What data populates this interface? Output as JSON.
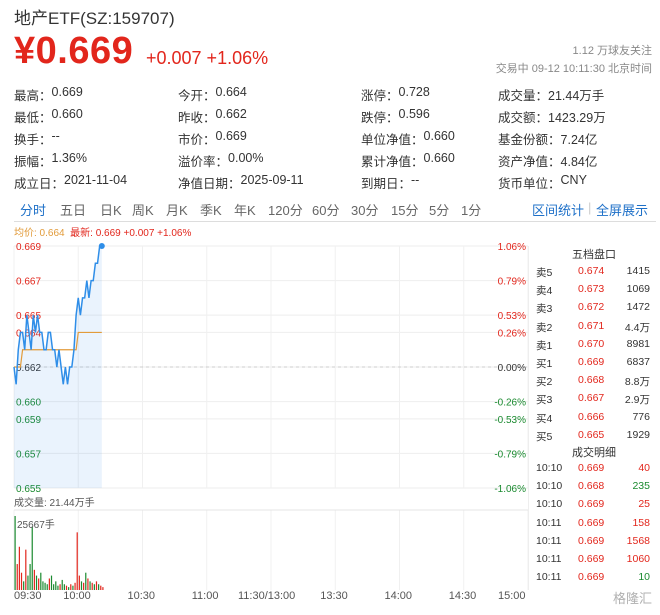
{
  "header": {
    "title": "地产ETF(SZ:159707)",
    "price": "¥0.669",
    "change": "+0.007  +1.06%",
    "followers": "1.12 万球友关注",
    "status": "交易中 09-12 10:11:30 北京时间"
  },
  "stats": [
    [
      {
        "label": "最高：",
        "value": "0.669",
        "color": "red"
      },
      {
        "label": "今开：",
        "value": "0.664",
        "color": "red"
      },
      {
        "label": "涨停：",
        "value": "0.728",
        "color": "red"
      },
      {
        "label": "成交量：",
        "value": "21.44万手",
        "color": ""
      }
    ],
    [
      {
        "label": "最低：",
        "value": "0.660",
        "color": "green"
      },
      {
        "label": "昨收：",
        "value": "0.662",
        "color": ""
      },
      {
        "label": "跌停：",
        "value": "0.596",
        "color": "green"
      },
      {
        "label": "成交额：",
        "value": "1423.29万",
        "color": ""
      }
    ],
    [
      {
        "label": "换手：",
        "value": "--",
        "color": ""
      },
      {
        "label": "市价：",
        "value": "0.669",
        "color": ""
      },
      {
        "label": "单位净值：",
        "value": "0.660",
        "color": ""
      },
      {
        "label": "基金份额：",
        "value": "7.24亿",
        "color": ""
      }
    ],
    [
      {
        "label": "振幅：",
        "value": "1.36%",
        "color": ""
      },
      {
        "label": "溢价率：",
        "value": "0.00%",
        "color": ""
      },
      {
        "label": "累计净值：",
        "value": "0.660",
        "color": ""
      },
      {
        "label": "资产净值：",
        "value": "4.84亿",
        "color": ""
      }
    ],
    [
      {
        "label": "成立日：",
        "value": "2021-11-04",
        "color": ""
      },
      {
        "label": "净值日期：",
        "value": "2025-09-11",
        "color": ""
      },
      {
        "label": "到期日：",
        "value": "--",
        "color": ""
      },
      {
        "label": "货币单位：",
        "value": "CNY",
        "color": ""
      }
    ]
  ],
  "tabs": [
    "分时",
    "五日",
    "日K",
    "周K",
    "月K",
    "季K",
    "年K",
    "120分",
    "60分",
    "30分",
    "15分",
    "5分",
    "1分"
  ],
  "active_tab": "分时",
  "tab_links": [
    "区间统计",
    "全屏展示"
  ],
  "legend": {
    "avg": "均价: 0.664",
    "last": "最新: 0.669  +0.007  +1.06%"
  },
  "volume_label": "成交量: 21.44万手",
  "volume_max_label": "25667手",
  "order_book_title": "五档盘口",
  "order_book": [
    {
      "label": "卖5",
      "price": "0.674",
      "vol": "1415",
      "color": "red"
    },
    {
      "label": "卖4",
      "price": "0.673",
      "vol": "1069",
      "color": "red"
    },
    {
      "label": "卖3",
      "price": "0.672",
      "vol": "1472",
      "color": "red"
    },
    {
      "label": "卖2",
      "price": "0.671",
      "vol": "4.4万",
      "color": "red"
    },
    {
      "label": "卖1",
      "price": "0.670",
      "vol": "8981",
      "color": "red"
    },
    {
      "label": "买1",
      "price": "0.669",
      "vol": "6837",
      "color": "red"
    },
    {
      "label": "买2",
      "price": "0.668",
      "vol": "8.8万",
      "color": "red"
    },
    {
      "label": "买3",
      "price": "0.667",
      "vol": "2.9万",
      "color": "red"
    },
    {
      "label": "买4",
      "price": "0.666",
      "vol": "776",
      "color": "red"
    },
    {
      "label": "买5",
      "price": "0.665",
      "vol": "1929",
      "color": "red"
    }
  ],
  "trades_title": "成交明细",
  "trades": [
    {
      "time": "10:10",
      "price": "0.669",
      "vol": "40",
      "vol_color": "red"
    },
    {
      "time": "10:10",
      "price": "0.668",
      "vol": "235",
      "vol_color": "green"
    },
    {
      "time": "10:10",
      "price": "0.669",
      "vol": "25",
      "vol_color": "red"
    },
    {
      "time": "10:11",
      "price": "0.669",
      "vol": "158",
      "vol_color": "red"
    },
    {
      "time": "10:11",
      "price": "0.669",
      "vol": "1568",
      "vol_color": "red"
    },
    {
      "time": "10:11",
      "price": "0.669",
      "vol": "1060",
      "vol_color": "red"
    },
    {
      "time": "10:11",
      "price": "0.669",
      "vol": "10",
      "vol_color": "green"
    }
  ],
  "time_axis": [
    "09:30",
    "10:00",
    "10:30",
    "11:00",
    "11:30/13:00",
    "13:30",
    "14:00",
    "14:30",
    "15:00"
  ],
  "watermark": "格隆汇",
  "colors": {
    "up": "#e2261c",
    "down": "#1a8a2f",
    "line": "#2f8ee8",
    "avg": "#e29b3a",
    "accent": "#1e70c8"
  },
  "chart_data": {
    "type": "line",
    "y_ticks_left": [
      "0.669",
      "0.667",
      "0.665",
      "0.664",
      "0.662",
      "0.660",
      "0.659",
      "0.657",
      "0.655"
    ],
    "y_ticks_right": [
      "1.06%",
      "0.79%",
      "0.53%",
      "0.26%",
      "0.00%",
      "-0.26%",
      "-0.53%",
      "-0.79%",
      "-1.06%"
    ],
    "ylim": [
      0.655,
      0.669
    ],
    "prev_close": 0.662,
    "x_minutes_elapsed": [
      0,
      1,
      2,
      3,
      4,
      5,
      6,
      7,
      8,
      9,
      10,
      11,
      12,
      13,
      14,
      15,
      16,
      17,
      18,
      19,
      20,
      21,
      22,
      23,
      24,
      25,
      26,
      27,
      28,
      29,
      30,
      31,
      32,
      33,
      34,
      35,
      36,
      37,
      38,
      39,
      40,
      41
    ],
    "price": [
      0.662,
      0.661,
      0.663,
      0.664,
      0.664,
      0.663,
      0.665,
      0.664,
      0.663,
      0.665,
      0.664,
      0.665,
      0.664,
      0.664,
      0.663,
      0.663,
      0.664,
      0.664,
      0.663,
      0.663,
      0.662,
      0.663,
      0.662,
      0.661,
      0.662,
      0.661,
      0.662,
      0.662,
      0.663,
      0.665,
      0.666,
      0.665,
      0.666,
      0.666,
      0.667,
      0.666,
      0.667,
      0.667,
      0.668,
      0.668,
      0.669,
      0.669
    ],
    "avg": [
      0.662,
      0.662,
      0.662,
      0.662,
      0.663,
      0.663,
      0.663,
      0.663,
      0.663,
      0.663,
      0.663,
      0.663,
      0.663,
      0.663,
      0.663,
      0.663,
      0.663,
      0.663,
      0.663,
      0.663,
      0.663,
      0.663,
      0.663,
      0.663,
      0.663,
      0.663,
      0.663,
      0.663,
      0.663,
      0.663,
      0.664,
      0.664,
      0.664,
      0.664,
      0.664,
      0.664,
      0.664,
      0.664,
      0.664,
      0.664,
      0.664,
      0.664
    ],
    "volume_hands": [
      25667,
      9000,
      15000,
      6000,
      3000,
      14000,
      5000,
      9000,
      22000,
      7000,
      5000,
      4000,
      6000,
      3000,
      2500,
      2000,
      4000,
      5000,
      2000,
      3000,
      1500,
      2000,
      3500,
      2000,
      1500,
      1000,
      2000,
      1500,
      2500,
      20000,
      5000,
      3000,
      2500,
      6000,
      4000,
      3000,
      2500,
      2000,
      3000,
      2000,
      1500,
      1000
    ],
    "volume_up": [
      false,
      true,
      true,
      true,
      false,
      true,
      false,
      false,
      false,
      true,
      false,
      true,
      false,
      false,
      false,
      false,
      true,
      false,
      false,
      false,
      false,
      true,
      false,
      false,
      true,
      false,
      true,
      false,
      true,
      true,
      true,
      false,
      true,
      false,
      true,
      false,
      true,
      false,
      true,
      false,
      true,
      true
    ],
    "volume_max": 25667
  }
}
